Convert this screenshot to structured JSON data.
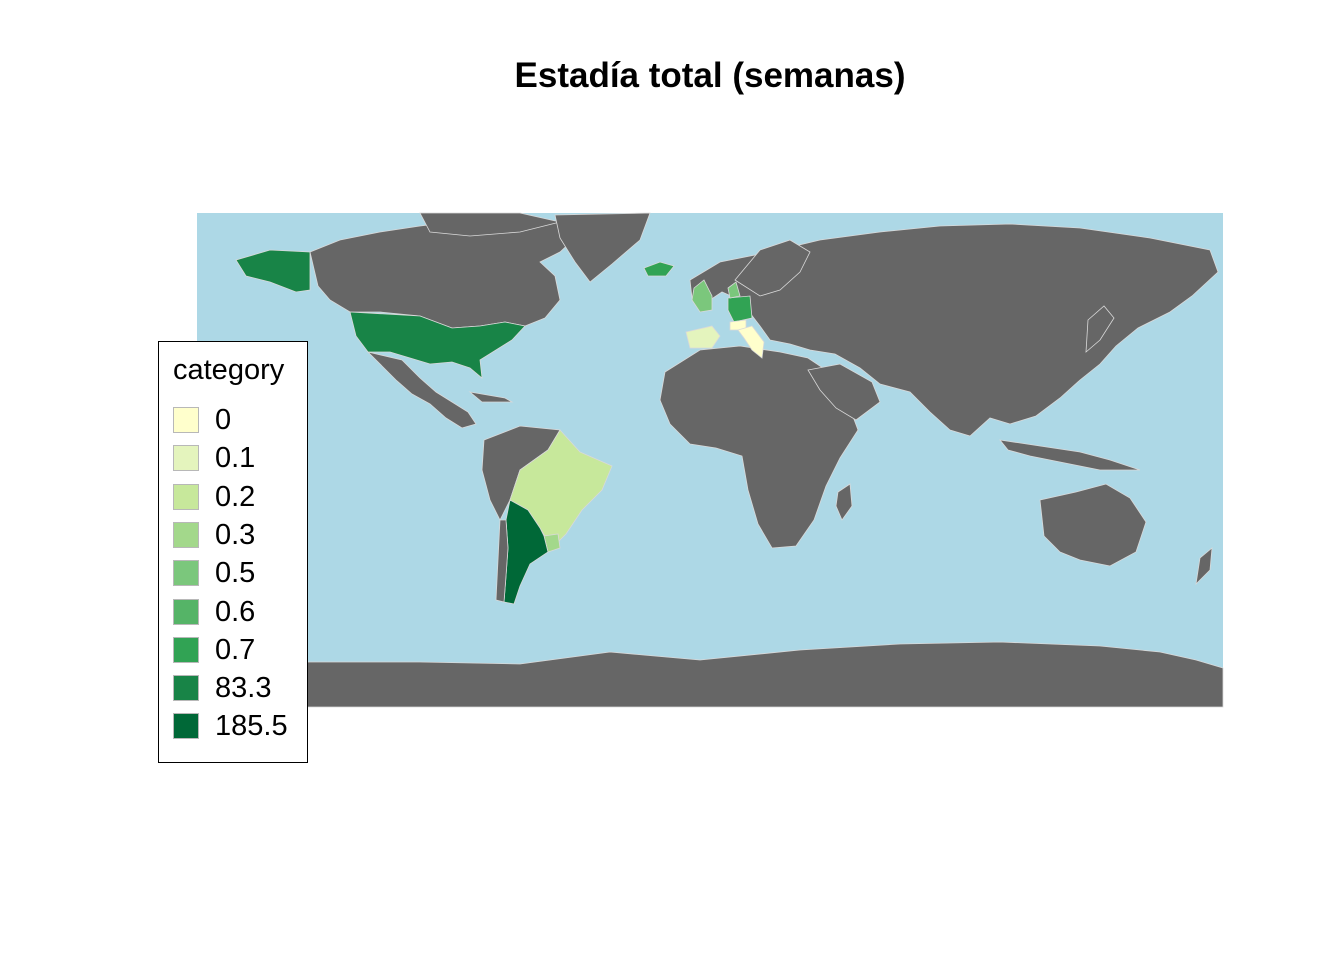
{
  "title": "Estadía total (semanas)",
  "colors": {
    "ocean": "#add8e6",
    "land_no_data": "#666666",
    "border": "#d9d9d9"
  },
  "legend": {
    "title": "category",
    "items": [
      {
        "label": "0",
        "color": "#ffffcc"
      },
      {
        "label": "0.1",
        "color": "#e4f4bd"
      },
      {
        "label": "0.2",
        "color": "#c7e89b"
      },
      {
        "label": "0.3",
        "color": "#a3d88b"
      },
      {
        "label": "0.5",
        "color": "#7bc77c"
      },
      {
        "label": "0.6",
        "color": "#55b467"
      },
      {
        "label": "0.7",
        "color": "#31a354"
      },
      {
        "label": "83.3",
        "color": "#188447"
      },
      {
        "label": "185.5",
        "color": "#006837"
      }
    ]
  },
  "chart_data": {
    "type": "choropleth",
    "legend_placement": "left",
    "regions": [
      {
        "country": "United States",
        "category": "83.3"
      },
      {
        "country": "Alaska",
        "category": "83.3"
      },
      {
        "country": "Argentina",
        "category": "185.5"
      },
      {
        "country": "Brazil",
        "category": "0.2"
      },
      {
        "country": "Uruguay",
        "category": "0.3"
      },
      {
        "country": "Spain",
        "category": "0.1"
      },
      {
        "country": "Italy",
        "category": "0"
      },
      {
        "country": "Switzerland",
        "category": "0"
      },
      {
        "country": "Germany",
        "category": "0.7"
      },
      {
        "country": "United Kingdom",
        "category": "0.5"
      },
      {
        "country": "Iceland",
        "category": "0.7"
      },
      {
        "country": "Denmark",
        "category": "0.5"
      }
    ]
  }
}
